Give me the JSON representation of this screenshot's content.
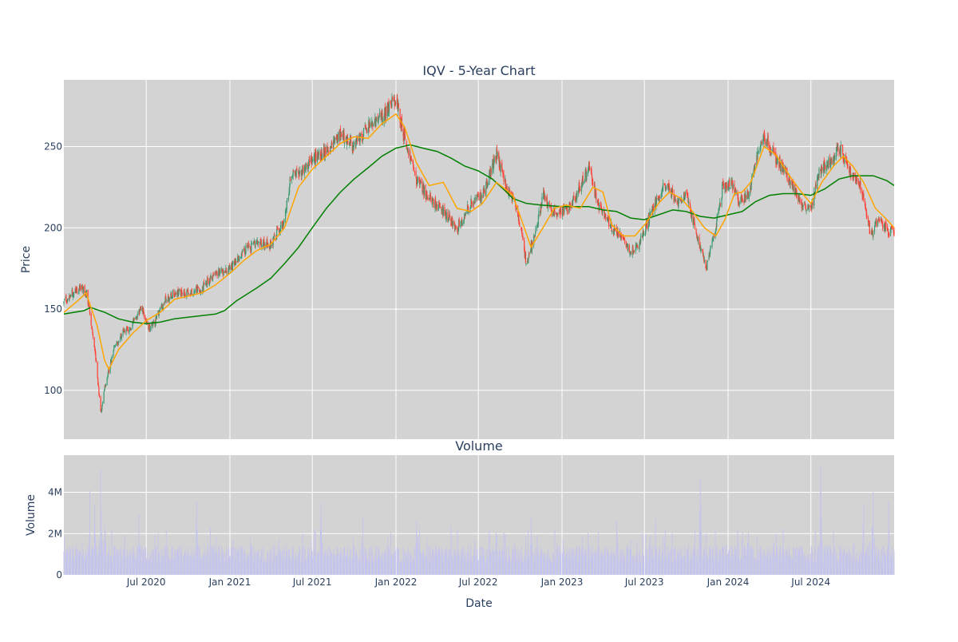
{
  "chart_data": [
    {
      "type": "candlestick",
      "title": "IQV - 5-Year Chart",
      "ylabel": "Price",
      "ylim": [
        70,
        291
      ],
      "yticks": [
        100,
        150,
        200,
        250
      ],
      "x_range": [
        "2020-01-02",
        "2024-12-31"
      ],
      "grid": true,
      "background": "#d3d3d3",
      "colors": {
        "increasing": "#3d9970",
        "decreasing": "#ff4136",
        "ma_short": "#ffa500",
        "ma_long": "#008000"
      },
      "series": [
        {
          "name": "",
          "kind": "close_price_anchors",
          "points": [
            [
              "2020-01-02",
              154
            ],
            [
              "2020-01-20",
              160
            ],
            [
              "2020-02-10",
              163
            ],
            [
              "2020-02-21",
              160
            ],
            [
              "2020-02-28",
              148
            ],
            [
              "2020-03-10",
              125
            ],
            [
              "2020-03-17",
              105
            ],
            [
              "2020-03-23",
              86
            ],
            [
              "2020-04-01",
              102
            ],
            [
              "2020-04-20",
              125
            ],
            [
              "2020-05-10",
              135
            ],
            [
              "2020-06-01",
              140
            ],
            [
              "2020-06-20",
              152
            ],
            [
              "2020-07-05",
              138
            ],
            [
              "2020-07-20",
              142
            ],
            [
              "2020-08-10",
              155
            ],
            [
              "2020-09-01",
              160
            ],
            [
              "2020-10-01",
              160
            ],
            [
              "2020-11-01",
              163
            ],
            [
              "2020-12-01",
              172
            ],
            [
              "2021-01-01",
              175
            ],
            [
              "2021-02-01",
              186
            ],
            [
              "2021-03-01",
              190
            ],
            [
              "2021-04-01",
              190
            ],
            [
              "2021-05-01",
              205
            ],
            [
              "2021-05-15",
              232
            ],
            [
              "2021-06-01",
              233
            ],
            [
              "2021-07-01",
              242
            ],
            [
              "2021-08-01",
              247
            ],
            [
              "2021-09-01",
              258
            ],
            [
              "2021-10-01",
              250
            ],
            [
              "2021-11-01",
              262
            ],
            [
              "2021-12-01",
              268
            ],
            [
              "2022-01-01",
              280
            ],
            [
              "2022-01-20",
              255
            ],
            [
              "2022-02-15",
              230
            ],
            [
              "2022-03-15",
              218
            ],
            [
              "2022-04-15",
              210
            ],
            [
              "2022-05-15",
              200
            ],
            [
              "2022-06-15",
              215
            ],
            [
              "2022-07-10",
              220
            ],
            [
              "2022-08-10",
              245
            ],
            [
              "2022-09-01",
              225
            ],
            [
              "2022-09-25",
              210
            ],
            [
              "2022-10-15",
              178
            ],
            [
              "2022-11-01",
              195
            ],
            [
              "2022-11-20",
              220
            ],
            [
              "2022-12-10",
              210
            ],
            [
              "2023-01-10",
              210
            ],
            [
              "2023-02-10",
              225
            ],
            [
              "2023-03-01",
              238
            ],
            [
              "2023-03-20",
              215
            ],
            [
              "2023-04-20",
              200
            ],
            [
              "2023-05-15",
              195
            ],
            [
              "2023-06-01",
              185
            ],
            [
              "2023-06-20",
              190
            ],
            [
              "2023-07-10",
              205
            ],
            [
              "2023-08-01",
              220
            ],
            [
              "2023-08-20",
              228
            ],
            [
              "2023-09-10",
              215
            ],
            [
              "2023-10-01",
              220
            ],
            [
              "2023-10-20",
              200
            ],
            [
              "2023-11-15",
              175
            ],
            [
              "2023-12-01",
              195
            ],
            [
              "2023-12-20",
              225
            ],
            [
              "2024-01-10",
              228
            ],
            [
              "2024-01-25",
              215
            ],
            [
              "2024-02-15",
              220
            ],
            [
              "2024-03-05",
              245
            ],
            [
              "2024-03-20",
              256
            ],
            [
              "2024-04-10",
              245
            ],
            [
              "2024-05-10",
              232
            ],
            [
              "2024-06-10",
              215
            ],
            [
              "2024-07-01",
              210
            ],
            [
              "2024-07-20",
              235
            ],
            [
              "2024-08-10",
              240
            ],
            [
              "2024-09-01",
              250
            ],
            [
              "2024-10-01",
              232
            ],
            [
              "2024-10-20",
              225
            ],
            [
              "2024-11-10",
              195
            ],
            [
              "2024-11-25",
              205
            ],
            [
              "2024-12-20",
              198
            ],
            [
              "2024-12-31",
              197
            ]
          ]
        },
        {
          "name": "",
          "kind": "moving_average_short",
          "points": [
            [
              "2020-01-02",
              148
            ],
            [
              "2020-02-01",
              155
            ],
            [
              "2020-02-20",
              160
            ],
            [
              "2020-03-15",
              140
            ],
            [
              "2020-04-01",
              118
            ],
            [
              "2020-04-10",
              113
            ],
            [
              "2020-05-01",
              125
            ],
            [
              "2020-06-01",
              135
            ],
            [
              "2020-07-01",
              143
            ],
            [
              "2020-08-01",
              148
            ],
            [
              "2020-09-01",
              156
            ],
            [
              "2020-10-01",
              158
            ],
            [
              "2020-11-01",
              160
            ],
            [
              "2020-12-01",
              165
            ],
            [
              "2021-01-01",
              172
            ],
            [
              "2021-02-01",
              180
            ],
            [
              "2021-03-01",
              186
            ],
            [
              "2021-04-01",
              190
            ],
            [
              "2021-05-01",
              200
            ],
            [
              "2021-06-01",
              225
            ],
            [
              "2021-07-01",
              236
            ],
            [
              "2021-08-01",
              244
            ],
            [
              "2021-09-01",
              252
            ],
            [
              "2021-10-01",
              256
            ],
            [
              "2021-11-01",
              255
            ],
            [
              "2021-12-01",
              264
            ],
            [
              "2022-01-01",
              270
            ],
            [
              "2022-01-20",
              262
            ],
            [
              "2022-02-15",
              240
            ],
            [
              "2022-03-15",
              226
            ],
            [
              "2022-04-15",
              228
            ],
            [
              "2022-05-15",
              212
            ],
            [
              "2022-06-15",
              210
            ],
            [
              "2022-07-10",
              215
            ],
            [
              "2022-08-10",
              228
            ],
            [
              "2022-09-15",
              220
            ],
            [
              "2022-10-10",
              200
            ],
            [
              "2022-10-25",
              188
            ],
            [
              "2022-11-20",
              200
            ],
            [
              "2022-12-15",
              212
            ],
            [
              "2023-01-10",
              214
            ],
            [
              "2023-02-10",
              212
            ],
            [
              "2023-03-10",
              225
            ],
            [
              "2023-04-01",
              222
            ],
            [
              "2023-04-20",
              202
            ],
            [
              "2023-05-15",
              195
            ],
            [
              "2023-06-10",
              195
            ],
            [
              "2023-07-05",
              203
            ],
            [
              "2023-08-01",
              215
            ],
            [
              "2023-08-25",
              222
            ],
            [
              "2023-09-20",
              218
            ],
            [
              "2023-10-15",
              210
            ],
            [
              "2023-11-10",
              200
            ],
            [
              "2023-12-05",
              195
            ],
            [
              "2023-12-25",
              205
            ],
            [
              "2024-01-15",
              221
            ],
            [
              "2024-02-01",
              222
            ],
            [
              "2024-02-20",
              228
            ],
            [
              "2024-03-20",
              250
            ],
            [
              "2024-04-15",
              245
            ],
            [
              "2024-05-15",
              232
            ],
            [
              "2024-06-10",
              222
            ],
            [
              "2024-07-01",
              215
            ],
            [
              "2024-07-25",
              228
            ],
            [
              "2024-08-20",
              238
            ],
            [
              "2024-09-10",
              244
            ],
            [
              "2024-10-01",
              238
            ],
            [
              "2024-10-25",
              228
            ],
            [
              "2024-11-20",
              212
            ],
            [
              "2024-12-15",
              205
            ],
            [
              "2024-12-31",
              200
            ]
          ]
        },
        {
          "name": "",
          "kind": "moving_average_long",
          "points": [
            [
              "2020-01-02",
              147
            ],
            [
              "2020-02-15",
              149
            ],
            [
              "2020-03-01",
              151
            ],
            [
              "2020-04-01",
              148
            ],
            [
              "2020-05-01",
              144
            ],
            [
              "2020-06-01",
              142
            ],
            [
              "2020-07-01",
              141
            ],
            [
              "2020-08-01",
              142
            ],
            [
              "2020-09-01",
              144
            ],
            [
              "2020-10-01",
              145
            ],
            [
              "2020-11-01",
              146
            ],
            [
              "2020-12-01",
              147
            ],
            [
              "2020-12-20",
              149
            ],
            [
              "2021-01-15",
              155
            ],
            [
              "2021-03-01",
              163
            ],
            [
              "2021-04-01",
              169
            ],
            [
              "2021-05-01",
              178
            ],
            [
              "2021-06-01",
              188
            ],
            [
              "2021-07-01",
              200
            ],
            [
              "2021-08-01",
              212
            ],
            [
              "2021-09-01",
              222
            ],
            [
              "2021-10-01",
              230
            ],
            [
              "2021-11-01",
              237
            ],
            [
              "2021-12-01",
              244
            ],
            [
              "2022-01-01",
              249
            ],
            [
              "2022-02-01",
              251
            ],
            [
              "2022-03-01",
              249
            ],
            [
              "2022-04-01",
              247
            ],
            [
              "2022-05-01",
              243
            ],
            [
              "2022-06-01",
              238
            ],
            [
              "2022-07-01",
              235
            ],
            [
              "2022-08-01",
              230
            ],
            [
              "2022-09-01",
              222
            ],
            [
              "2022-09-15",
              218
            ],
            [
              "2022-10-15",
              215
            ],
            [
              "2022-11-15",
              214
            ],
            [
              "2023-01-01",
              213
            ],
            [
              "2023-03-01",
              213
            ],
            [
              "2023-04-01",
              211
            ],
            [
              "2023-05-01",
              210
            ],
            [
              "2023-06-01",
              206
            ],
            [
              "2023-07-01",
              205
            ],
            [
              "2023-08-01",
              208
            ],
            [
              "2023-09-01",
              211
            ],
            [
              "2023-10-01",
              210
            ],
            [
              "2023-11-01",
              207
            ],
            [
              "2023-12-01",
              206
            ],
            [
              "2024-01-01",
              208
            ],
            [
              "2024-02-01",
              210
            ],
            [
              "2024-03-01",
              216
            ],
            [
              "2024-04-01",
              220
            ],
            [
              "2024-05-01",
              221
            ],
            [
              "2024-06-01",
              221
            ],
            [
              "2024-07-01",
              220
            ],
            [
              "2024-08-01",
              224
            ],
            [
              "2024-09-01",
              230
            ],
            [
              "2024-10-01",
              232
            ],
            [
              "2024-11-15",
              232
            ],
            [
              "2024-12-15",
              229
            ],
            [
              "2024-12-31",
              226
            ]
          ]
        }
      ]
    },
    {
      "type": "bar",
      "title": "Volume",
      "xlabel": "Date",
      "ylabel": "Volume",
      "ylim": [
        0,
        5800000
      ],
      "yticks": [
        0,
        2000000,
        4000000
      ],
      "ytick_labels": [
        "0",
        "2M",
        "4M"
      ],
      "xticks": [
        "2020-07-01",
        "2021-01-01",
        "2021-07-01",
        "2022-01-01",
        "2022-07-01",
        "2023-01-01",
        "2023-07-01",
        "2024-01-01",
        "2024-07-01"
      ],
      "xtick_labels": [
        "Jul 2020",
        "Jan 2021",
        "Jul 2021",
        "Jan 2022",
        "Jul 2022",
        "Jan 2023",
        "Jul 2023",
        "Jan 2024",
        "Jul 2024"
      ],
      "grid": true,
      "background": "#d3d3d3",
      "bar_color": "#c4c4ec",
      "baseline": 1100000,
      "spikes": [
        [
          "2020-02-28",
          3200000
        ],
        [
          "2020-03-10",
          3400000
        ],
        [
          "2020-03-23",
          5100000
        ],
        [
          "2020-04-01",
          3000000
        ],
        [
          "2020-05-15",
          2200000
        ],
        [
          "2020-06-15",
          2800000
        ],
        [
          "2020-07-20",
          2300000
        ],
        [
          "2020-10-20",
          3600000
        ],
        [
          "2021-02-15",
          2300000
        ],
        [
          "2021-07-20",
          4100000
        ],
        [
          "2021-10-20",
          2100000
        ],
        [
          "2022-02-15",
          2900000
        ],
        [
          "2022-05-01",
          2500000
        ],
        [
          "2022-07-25",
          2600000
        ],
        [
          "2022-10-25",
          2700000
        ],
        [
          "2023-02-15",
          2200000
        ],
        [
          "2023-05-01",
          3600000
        ],
        [
          "2023-07-25",
          2000000
        ],
        [
          "2023-11-01",
          4500000
        ],
        [
          "2024-02-15",
          2800000
        ],
        [
          "2024-05-01",
          2200000
        ],
        [
          "2024-07-22",
          5400000
        ],
        [
          "2024-10-25",
          3300000
        ],
        [
          "2024-11-15",
          4500000
        ],
        [
          "2024-12-20",
          3200000
        ]
      ]
    }
  ]
}
